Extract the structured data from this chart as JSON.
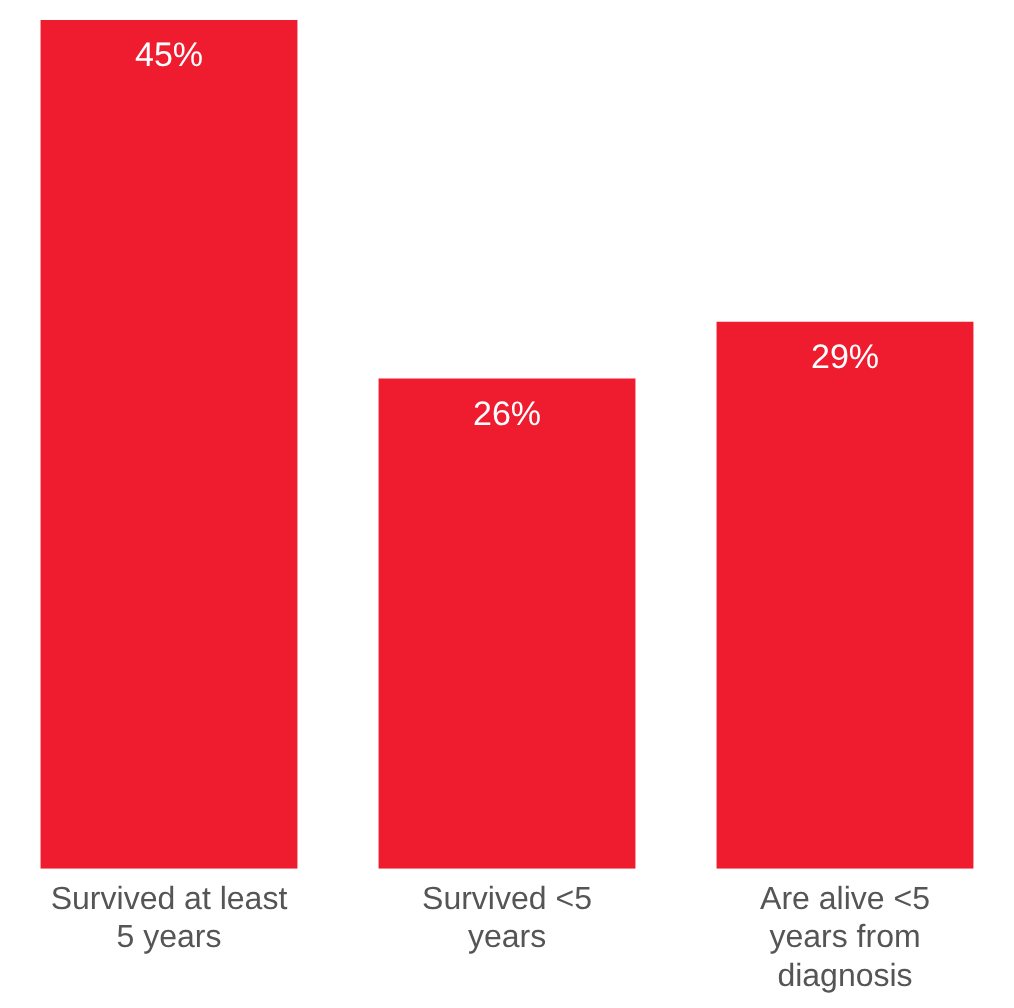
{
  "chart_data": {
    "type": "bar",
    "categories": [
      "Survived at least 5 years",
      "Survived <5 years",
      "Are alive <5 years from diagnosis"
    ],
    "values": [
      45,
      26,
      29
    ],
    "value_labels": [
      "45%",
      "26%",
      "29%"
    ],
    "color": "#ee1c2e"
  }
}
